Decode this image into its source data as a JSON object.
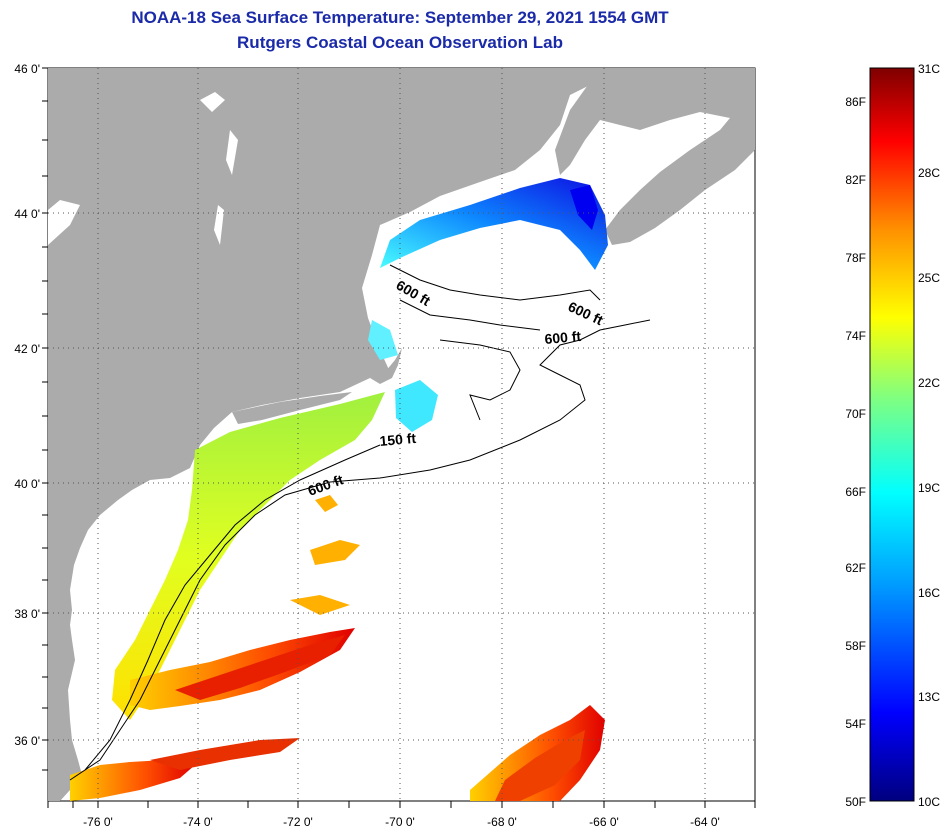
{
  "header": {
    "title": "NOAA-18 Sea Surface Temperature:  September 29, 2021 1554 GMT",
    "subtitle": "Rutgers Coastal Ocean Observation Lab"
  },
  "map": {
    "lat_range": [
      35,
      46
    ],
    "lon_range": [
      -77,
      -63
    ],
    "lat_labels": [
      "46 0'",
      "44 0'",
      "42 0'",
      "40 0'",
      "38 0'",
      "36 0'"
    ],
    "lon_labels": [
      "-76 0'",
      "-74 0'",
      "-72 0'",
      "-70 0'",
      "-68 0'",
      "-66 0'",
      "-64 0'"
    ],
    "contour_labels": [
      "600 ft",
      "600 ft",
      "600 ft",
      "150 ft",
      "600 ft"
    ],
    "colors": {
      "land": "#ababab",
      "no_data": "#ffffff",
      "grid": "#555555"
    }
  },
  "colorbar": {
    "fahrenheit_labels": [
      "86F",
      "82F",
      "78F",
      "74F",
      "70F",
      "66F",
      "62F",
      "58F",
      "54F",
      "50F"
    ],
    "celsius_labels": [
      "31C",
      "28C",
      "25C",
      "22C",
      "19C",
      "16C",
      "13C",
      "10C"
    ],
    "gradient_stops": [
      "#00007f",
      "#0000ff",
      "#00a0ff",
      "#00ffff",
      "#80ff80",
      "#ffff00",
      "#ff9000",
      "#ff0000",
      "#7f0000"
    ]
  }
}
